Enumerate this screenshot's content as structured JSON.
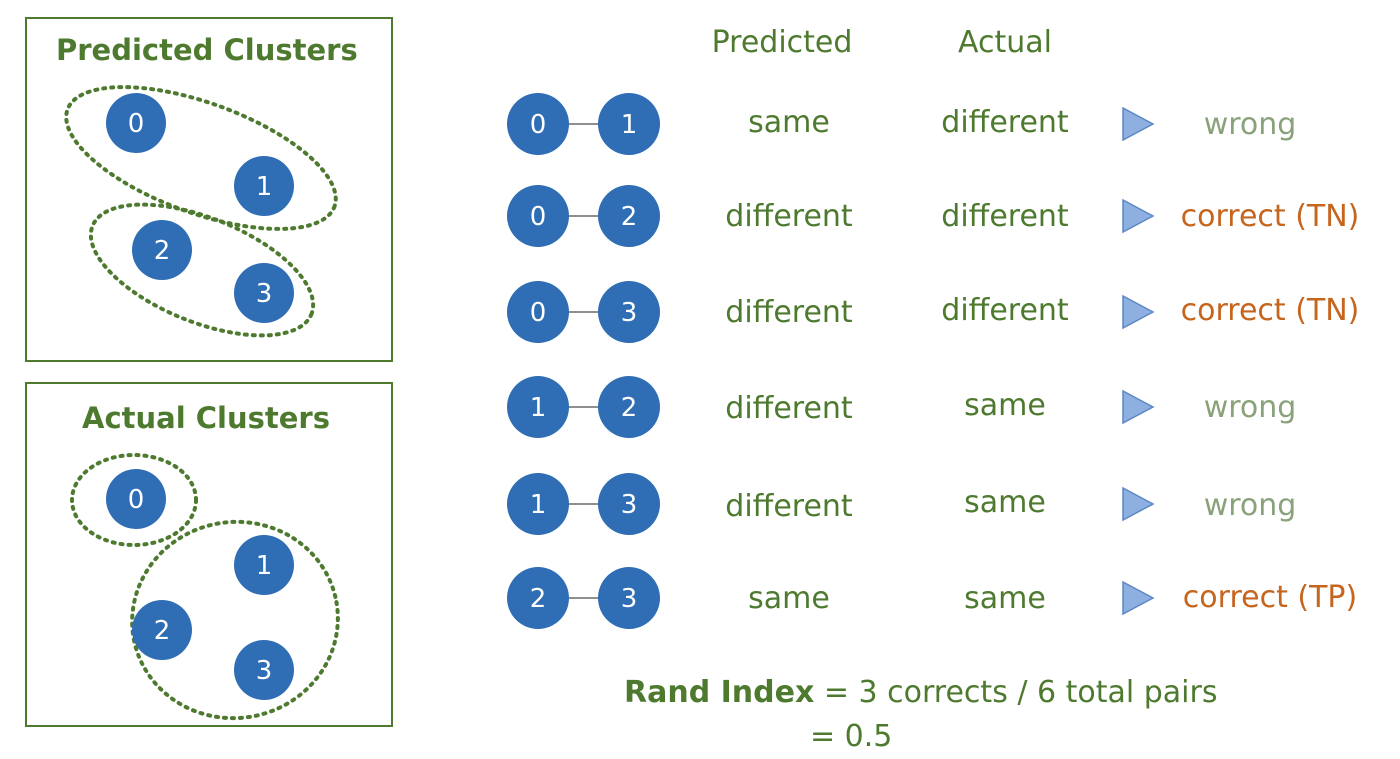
{
  "colors": {
    "green": "#4e7a2f",
    "node_blue": "#2f6eb5",
    "arrow_blue": "#8eb0e0",
    "wrong_text": "#8aa27a",
    "correct_text": "#c5651e"
  },
  "predicted_panel": {
    "title": "Predicted Clusters",
    "nodes": [
      "0",
      "1",
      "2",
      "3"
    ]
  },
  "actual_panel": {
    "title": "Actual Clusters",
    "nodes": [
      "0",
      "1",
      "2",
      "3"
    ]
  },
  "table": {
    "header_predicted": "Predicted",
    "header_actual": "Actual",
    "rows": [
      {
        "a": "0",
        "b": "1",
        "predicted": "same",
        "actual": "different",
        "verdict": "wrong",
        "correct": false
      },
      {
        "a": "0",
        "b": "2",
        "predicted": "different",
        "actual": "different",
        "verdict": "correct (TN)",
        "correct": true
      },
      {
        "a": "0",
        "b": "3",
        "predicted": "different",
        "actual": "different",
        "verdict": "correct (TN)",
        "correct": true
      },
      {
        "a": "1",
        "b": "2",
        "predicted": "different",
        "actual": "same",
        "verdict": "wrong",
        "correct": false
      },
      {
        "a": "1",
        "b": "3",
        "predicted": "different",
        "actual": "same",
        "verdict": "wrong",
        "correct": false
      },
      {
        "a": "2",
        "b": "3",
        "predicted": "same",
        "actual": "same",
        "verdict": "correct (TP)",
        "correct": true
      }
    ]
  },
  "formula": {
    "label": "Rand Index",
    "expression": " = 3 corrects / 6 total pairs",
    "result": "= 0.5"
  }
}
